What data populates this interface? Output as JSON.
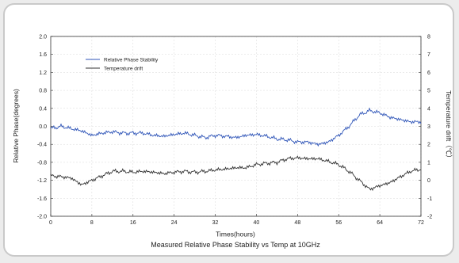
{
  "chart_data": {
    "type": "line",
    "title": "Measured Relative Phase Stability vs Temp at 10GHz",
    "xlabel": "Times(hours)",
    "ylabel_left": "Relative Phase(degrees)",
    "ylabel_right": "Temperature drift（℃）",
    "xlim": [
      0,
      72
    ],
    "ylim_left": [
      -2.0,
      2.0
    ],
    "ylim_right": [
      -2,
      8
    ],
    "x_ticks": [
      "0",
      "8",
      "16",
      "24",
      "32",
      "40",
      "48",
      "56",
      "64",
      "72"
    ],
    "y_ticks_left": [
      "2.0",
      "1.6",
      "1.2",
      "0.8",
      "0.4",
      "0.0",
      "-0.4",
      "-0.8",
      "-1.2",
      "-1.6",
      "-2.0"
    ],
    "y_ticks_right": [
      "8",
      "7",
      "6",
      "5",
      "4",
      "3",
      "2",
      "1",
      "0",
      "-1",
      "-2"
    ],
    "grid": true,
    "legend_position": "top-left",
    "series": [
      {
        "name": "Relative Phase Stability",
        "axis": "left",
        "color": "#2f55b8",
        "x": [
          0,
          2,
          4,
          6,
          8,
          10,
          12,
          14,
          16,
          18,
          20,
          22,
          24,
          26,
          28,
          30,
          32,
          34,
          36,
          38,
          40,
          42,
          44,
          46,
          48,
          50,
          52,
          54,
          56,
          58,
          60,
          62,
          64,
          66,
          68,
          70,
          72
        ],
        "values": [
          -0.05,
          0.0,
          -0.05,
          -0.1,
          -0.2,
          -0.15,
          -0.12,
          -0.15,
          -0.15,
          -0.15,
          -0.2,
          -0.22,
          -0.18,
          -0.15,
          -0.2,
          -0.25,
          -0.2,
          -0.22,
          -0.25,
          -0.2,
          -0.18,
          -0.22,
          -0.28,
          -0.3,
          -0.35,
          -0.35,
          -0.4,
          -0.35,
          -0.2,
          0.0,
          0.25,
          0.35,
          0.3,
          0.2,
          0.15,
          0.1,
          0.1
        ]
      },
      {
        "name": "Temperature drift",
        "axis": "left",
        "color": "#333333",
        "x": [
          0,
          2,
          4,
          6,
          8,
          10,
          12,
          14,
          16,
          18,
          20,
          22,
          24,
          26,
          28,
          30,
          32,
          34,
          36,
          38,
          40,
          42,
          44,
          46,
          48,
          50,
          52,
          54,
          56,
          58,
          60,
          62,
          64,
          66,
          68,
          70,
          72
        ],
        "values": [
          -1.1,
          -1.12,
          -1.15,
          -1.3,
          -1.2,
          -1.1,
          -1.0,
          -1.0,
          -1.02,
          -1.0,
          -1.02,
          -1.05,
          -1.02,
          -1.0,
          -1.02,
          -1.0,
          -0.97,
          -0.95,
          -0.92,
          -0.92,
          -0.85,
          -0.82,
          -0.8,
          -0.72,
          -0.7,
          -0.72,
          -0.72,
          -0.78,
          -0.85,
          -1.0,
          -1.2,
          -1.4,
          -1.32,
          -1.25,
          -1.12,
          -1.0,
          -0.95
        ]
      }
    ]
  }
}
